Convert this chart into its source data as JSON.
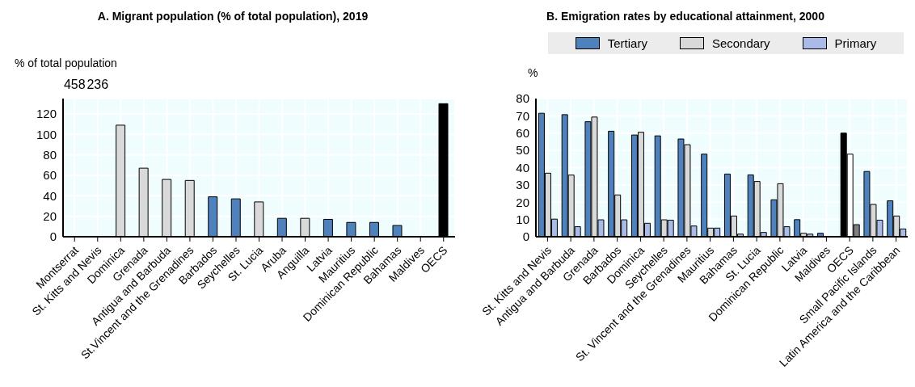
{
  "chart_data": [
    {
      "type": "bar",
      "title": "A. Migrant population (% of total population), 2019",
      "ylabel": "% of total population",
      "categories": [
        "Montserrat",
        "St. Kitts and Nevis",
        "Dominica",
        "Grenada",
        "Antigua and Barbuda",
        "St.Vincent and the Grenadines",
        "Barbados",
        "Seychelles",
        "St. Lucia",
        "Aruba",
        "Anguilla",
        "Latvia",
        "Mauritius",
        "Dominican Republic",
        "Bahamas",
        "Maldives",
        "OECS"
      ],
      "values": [
        null,
        null,
        109,
        67,
        56,
        55,
        39,
        37,
        34,
        18,
        18,
        17,
        14,
        14,
        11,
        null,
        130
      ],
      "value_labels": [
        "458",
        "236",
        null,
        null,
        null,
        null,
        null,
        null,
        null,
        null,
        null,
        null,
        null,
        null,
        null,
        null,
        null
      ],
      "colors": [
        "#d9d9d9",
        "#d9d9d9",
        "#d9d9d9",
        "#d9d9d9",
        "#d9d9d9",
        "#d9d9d9",
        "#4f81bd",
        "#4f81bd",
        "#d9d9d9",
        "#4f81bd",
        "#d9d9d9",
        "#4f81bd",
        "#4f81bd",
        "#4f81bd",
        "#4f81bd",
        "#4f81bd",
        "#000000"
      ],
      "ylim": [
        0,
        135
      ],
      "yticks": [
        0,
        20,
        40,
        60,
        80,
        100,
        120
      ],
      "grid": true
    },
    {
      "type": "bar",
      "title": "B. Emigration rates by educational attainment, 2000",
      "ylabel": "%",
      "categories": [
        "St. Kitts and Nevis",
        "Antigua and Barbuda",
        "Grenada",
        "Barbados",
        "Dominica",
        "Seychelles",
        "St. Vincent and the Grenadines",
        "Mauritius",
        "Bahamas",
        "St. Lucia",
        "Dominican Republic",
        "Latvia",
        "Maldives",
        "OECS",
        "Small Pacific Islands",
        "Latin America and the Caribbean"
      ],
      "series": [
        {
          "name": "Tertiary",
          "color": "#4f81bd",
          "values": [
            71.5,
            70.7,
            66.6,
            61.1,
            58.9,
            58.4,
            56.6,
            47.8,
            36.3,
            35.8,
            21.4,
            9.9,
            2,
            60,
            37.8,
            20.8
          ],
          "colors": [
            "#4f81bd",
            "#4f81bd",
            "#4f81bd",
            "#4f81bd",
            "#4f81bd",
            "#4f81bd",
            "#4f81bd",
            "#4f81bd",
            "#4f81bd",
            "#4f81bd",
            "#4f81bd",
            "#4f81bd",
            "#4f81bd",
            "#000000",
            "#4f81bd",
            "#4f81bd"
          ]
        },
        {
          "name": "Secondary",
          "color": "#d9d9d9",
          "values": [
            36.8,
            35.7,
            69.3,
            24.2,
            60.5,
            9.8,
            53.3,
            5,
            12,
            32,
            30.7,
            2,
            null,
            47.8,
            18.7,
            12
          ],
          "colors": [
            "#d9d9d9",
            "#d9d9d9",
            "#d9d9d9",
            "#d9d9d9",
            "#d9d9d9",
            "#d9d9d9",
            "#d9d9d9",
            "#d9d9d9",
            "#d9d9d9",
            "#d9d9d9",
            "#d9d9d9",
            "#d9d9d9",
            "#d9d9d9",
            "#ffffff",
            "#d9d9d9",
            "#d9d9d9"
          ]
        },
        {
          "name": "Primary",
          "color": "#a9bbe6",
          "values": [
            10.2,
            5.8,
            9.8,
            9.8,
            7.8,
            9.6,
            6.2,
            5,
            1.5,
            2.5,
            5.8,
            1.5,
            null,
            7,
            9.6,
            4.5
          ],
          "colors": [
            "#a9bbe6",
            "#a9bbe6",
            "#a9bbe6",
            "#a9bbe6",
            "#a9bbe6",
            "#a9bbe6",
            "#a9bbe6",
            "#a9bbe6",
            "#a9bbe6",
            "#a9bbe6",
            "#a9bbe6",
            "#a9bbe6",
            "#a9bbe6",
            "#808080",
            "#a9bbe6",
            "#a9bbe6"
          ]
        }
      ],
      "ylim": [
        0,
        80
      ],
      "yticks": [
        0,
        10,
        20,
        30,
        40,
        50,
        60,
        70,
        80
      ],
      "grid": true,
      "legend": "top"
    }
  ]
}
